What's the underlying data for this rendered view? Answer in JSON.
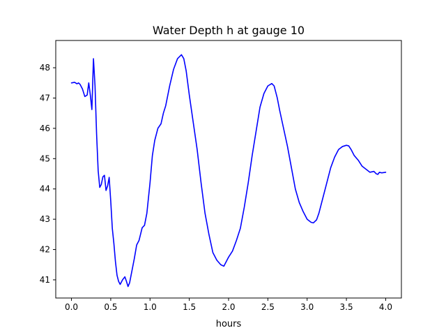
{
  "chart_data": {
    "type": "line",
    "title": "Water Depth h at gauge 10",
    "xlabel": "hours",
    "ylabel": "",
    "xlim": [
      -0.2,
      4.2
    ],
    "ylim": [
      40.4,
      48.9
    ],
    "xticks": [
      0.0,
      0.5,
      1.0,
      1.5,
      2.0,
      2.5,
      3.0,
      3.5,
      4.0
    ],
    "xtick_labels": [
      "0.0",
      "0.5",
      "1.0",
      "1.5",
      "2.0",
      "2.5",
      "3.0",
      "3.5",
      "4.0"
    ],
    "yticks": [
      41,
      42,
      43,
      44,
      45,
      46,
      47,
      48
    ],
    "ytick_labels": [
      "41",
      "42",
      "43",
      "44",
      "45",
      "46",
      "47",
      "48"
    ],
    "grid": false,
    "legend": "none",
    "series": [
      {
        "color": "#0000ff",
        "x": [
          0.0,
          0.04,
          0.07,
          0.09,
          0.11,
          0.14,
          0.17,
          0.2,
          0.22,
          0.24,
          0.26,
          0.28,
          0.3,
          0.32,
          0.34,
          0.36,
          0.38,
          0.4,
          0.42,
          0.44,
          0.46,
          0.48,
          0.5,
          0.52,
          0.54,
          0.56,
          0.58,
          0.6,
          0.62,
          0.65,
          0.68,
          0.7,
          0.72,
          0.74,
          0.77,
          0.8,
          0.83,
          0.86,
          0.9,
          0.93,
          0.96,
          1.0,
          1.03,
          1.06,
          1.1,
          1.14,
          1.17,
          1.2,
          1.25,
          1.3,
          1.35,
          1.4,
          1.43,
          1.46,
          1.5,
          1.55,
          1.6,
          1.65,
          1.7,
          1.75,
          1.8,
          1.85,
          1.9,
          1.94,
          1.97,
          2.0,
          2.05,
          2.1,
          2.15,
          2.2,
          2.25,
          2.3,
          2.35,
          2.4,
          2.45,
          2.5,
          2.55,
          2.58,
          2.62,
          2.65,
          2.7,
          2.75,
          2.8,
          2.85,
          2.9,
          2.95,
          3.0,
          3.05,
          3.08,
          3.12,
          3.15,
          3.2,
          3.25,
          3.3,
          3.35,
          3.4,
          3.45,
          3.5,
          3.53,
          3.56,
          3.6,
          3.65,
          3.7,
          3.75,
          3.8,
          3.85,
          3.88,
          3.9,
          3.92,
          3.95,
          4.0
        ],
        "values": [
          47.5,
          47.52,
          47.47,
          47.5,
          47.45,
          47.3,
          47.05,
          47.1,
          47.5,
          47.1,
          46.62,
          48.3,
          47.4,
          45.8,
          44.6,
          44.05,
          44.15,
          44.4,
          44.45,
          43.95,
          44.1,
          44.38,
          43.6,
          42.7,
          42.2,
          41.6,
          41.15,
          40.95,
          40.85,
          41.0,
          41.1,
          40.95,
          40.78,
          40.9,
          41.3,
          41.7,
          42.15,
          42.3,
          42.72,
          42.8,
          43.2,
          44.2,
          45.1,
          45.6,
          46.0,
          46.15,
          46.5,
          46.75,
          47.4,
          47.95,
          48.3,
          48.43,
          48.3,
          47.9,
          47.1,
          46.2,
          45.3,
          44.2,
          43.2,
          42.5,
          41.9,
          41.65,
          41.5,
          41.45,
          41.6,
          41.75,
          41.95,
          42.3,
          42.7,
          43.4,
          44.2,
          45.1,
          45.9,
          46.7,
          47.15,
          47.4,
          47.48,
          47.4,
          47.0,
          46.6,
          46.0,
          45.4,
          44.7,
          44.0,
          43.55,
          43.25,
          43.0,
          42.9,
          42.88,
          42.98,
          43.2,
          43.7,
          44.2,
          44.7,
          45.05,
          45.3,
          45.4,
          45.44,
          45.42,
          45.3,
          45.1,
          44.95,
          44.75,
          44.65,
          44.55,
          44.58,
          44.5,
          44.48,
          44.55,
          44.53,
          44.55
        ]
      }
    ]
  }
}
